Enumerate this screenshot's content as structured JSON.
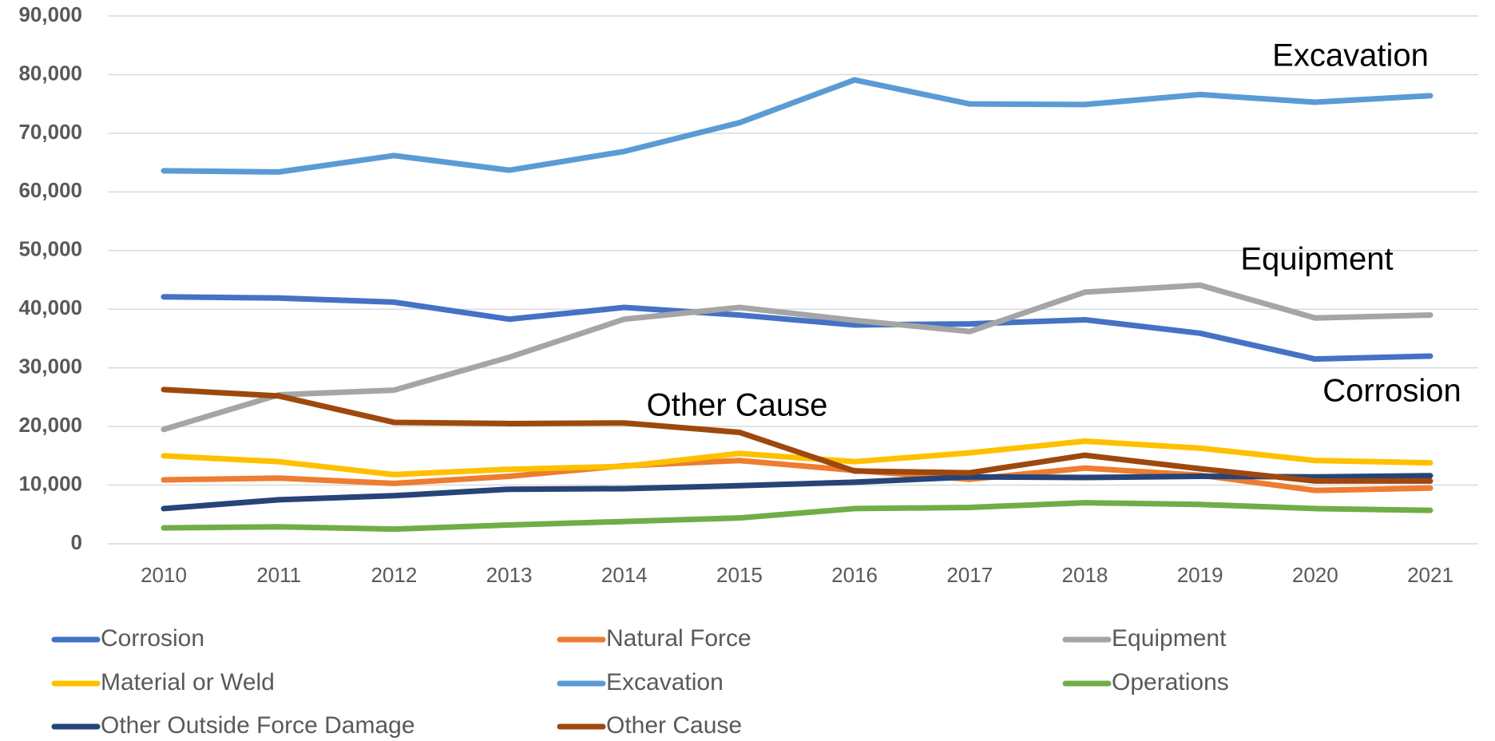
{
  "chart_data": {
    "type": "line",
    "x": [
      2010,
      2011,
      2012,
      2013,
      2014,
      2015,
      2016,
      2017,
      2018,
      2019,
      2020,
      2021
    ],
    "series": [
      {
        "name": "Corrosion",
        "color": "#4472c4",
        "values": [
          42100,
          41900,
          41200,
          38300,
          40300,
          39000,
          37300,
          37500,
          38200,
          35900,
          31500,
          32000
        ]
      },
      {
        "name": "Natural Force",
        "color": "#ed7d31",
        "values": [
          10900,
          11200,
          10300,
          11500,
          13300,
          14200,
          12500,
          11000,
          12900,
          11700,
          9100,
          9500
        ]
      },
      {
        "name": "Equipment",
        "color": "#a5a5a5",
        "values": [
          19500,
          25400,
          26200,
          31800,
          38300,
          40300,
          38100,
          36200,
          42900,
          44100,
          38500,
          39000
        ]
      },
      {
        "name": "Material or Weld",
        "color": "#ffc000",
        "values": [
          15000,
          14000,
          11800,
          12700,
          13200,
          15400,
          14000,
          15500,
          17500,
          16300,
          14200,
          13800
        ]
      },
      {
        "name": "Excavation",
        "color": "#5b9bd5",
        "values": [
          63600,
          63400,
          66200,
          63700,
          66900,
          71800,
          79100,
          75000,
          74900,
          76600,
          75300,
          76400
        ]
      },
      {
        "name": "Operations",
        "color": "#70ad47",
        "values": [
          2700,
          2900,
          2500,
          3200,
          3800,
          4400,
          6000,
          6200,
          7000,
          6700,
          6000,
          5700
        ]
      },
      {
        "name": "Other Outside Force Damage",
        "color": "#264478",
        "values": [
          6000,
          7500,
          8200,
          9300,
          9400,
          9900,
          10500,
          11400,
          11300,
          11500,
          11400,
          11600
        ]
      },
      {
        "name": "Other Cause",
        "color": "#9e480e",
        "values": [
          26300,
          25200,
          20700,
          20500,
          20600,
          19000,
          12400,
          12100,
          15100,
          12800,
          10700,
          10700
        ]
      }
    ],
    "annotations": [
      "Excavation",
      "Equipment",
      "Corrosion",
      "Other Cause"
    ],
    "xlim": [
      2010,
      2021
    ],
    "ylim": [
      0,
      90000
    ],
    "yticks": [
      0,
      {
        "value": 10000,
        "label": "10,000"
      },
      {
        "value": 20000,
        "label": "20,000"
      },
      {
        "value": 30000,
        "label": "30,000"
      },
      {
        "value": 40000,
        "label": "40,000"
      },
      {
        "value": 50000,
        "label": "50,000"
      },
      {
        "value": 60000,
        "label": "60,000"
      },
      {
        "value": 70000,
        "label": "70,000"
      },
      {
        "value": 80000,
        "label": "80,000"
      },
      {
        "value": 90000,
        "label": "90,000"
      }
    ],
    "grid": true,
    "legend": "bottom"
  }
}
